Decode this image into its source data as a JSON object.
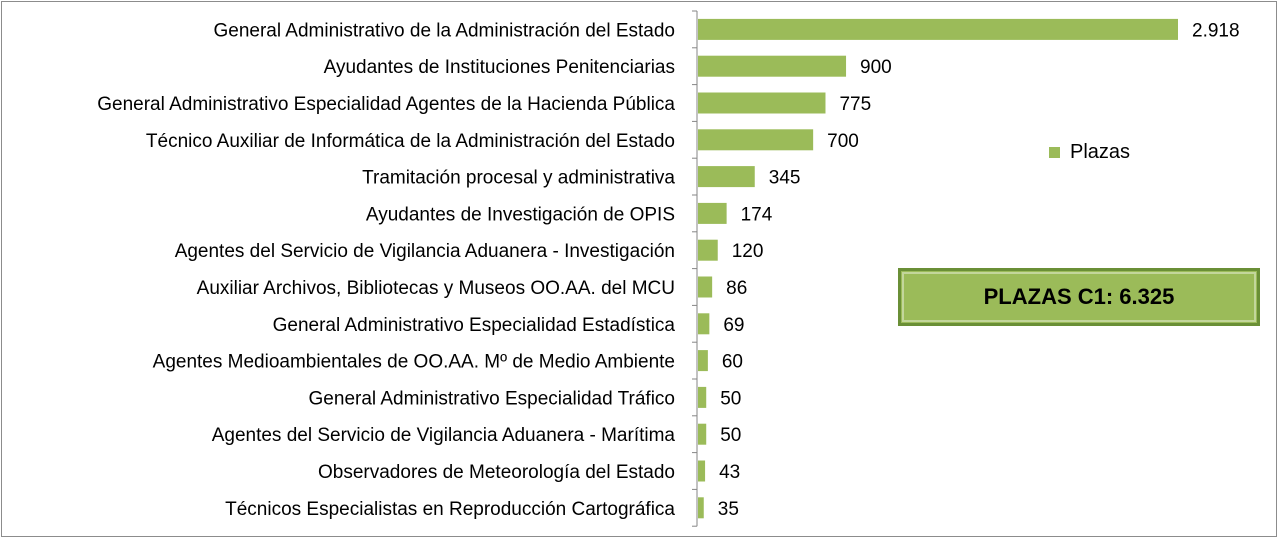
{
  "chart_data": {
    "type": "bar",
    "orientation": "horizontal",
    "categories": [
      "General Administrativo de la Administración del Estado",
      "Ayudantes de  Instituciones Penitenciarias",
      "General Administrativo Especialidad Agentes de la Hacienda Pública",
      "Técnico Auxiliar de Informática de la Administración del Estado",
      "Tramitación procesal y administrativa",
      "Ayudantes de Investigación de OPIS",
      "Agentes del Servicio de Vigilancia Aduanera - Investigación",
      "Auxiliar Archivos, Bibliotecas y Museos OO.AA. del MCU",
      "General Administrativo Especialidad Estadística",
      "Agentes Medioambientales de OO.AA. Mº de Medio Ambiente",
      "General Administrativo Especialidad Tráfico",
      "Agentes del Servicio de Vigilancia Aduanera - Marítima",
      "Observadores de Meteorología del Estado",
      "Técnicos Especialistas en Reproducción Cartográfica"
    ],
    "series": [
      {
        "name": "Plazas",
        "values": [
          2918,
          900,
          775,
          700,
          345,
          174,
          120,
          86,
          69,
          60,
          50,
          50,
          43,
          35
        ],
        "labels": [
          "2.918",
          "900",
          "775",
          "700",
          "345",
          "174",
          "120",
          "86",
          "69",
          "60",
          "50",
          "50",
          "43",
          "35"
        ],
        "color": "#9bbb59"
      }
    ],
    "xlim": [
      0,
      2918
    ],
    "grid": false,
    "legend_position": "right",
    "annotation": "PLAZAS C1: 6.325"
  },
  "legend": {
    "label": "Plazas",
    "color": "#9bbb59"
  },
  "total_box": {
    "text": "PLAZAS C1: 6.325",
    "border_color": "#6a8f36",
    "fill_color": "#9bbb59"
  }
}
